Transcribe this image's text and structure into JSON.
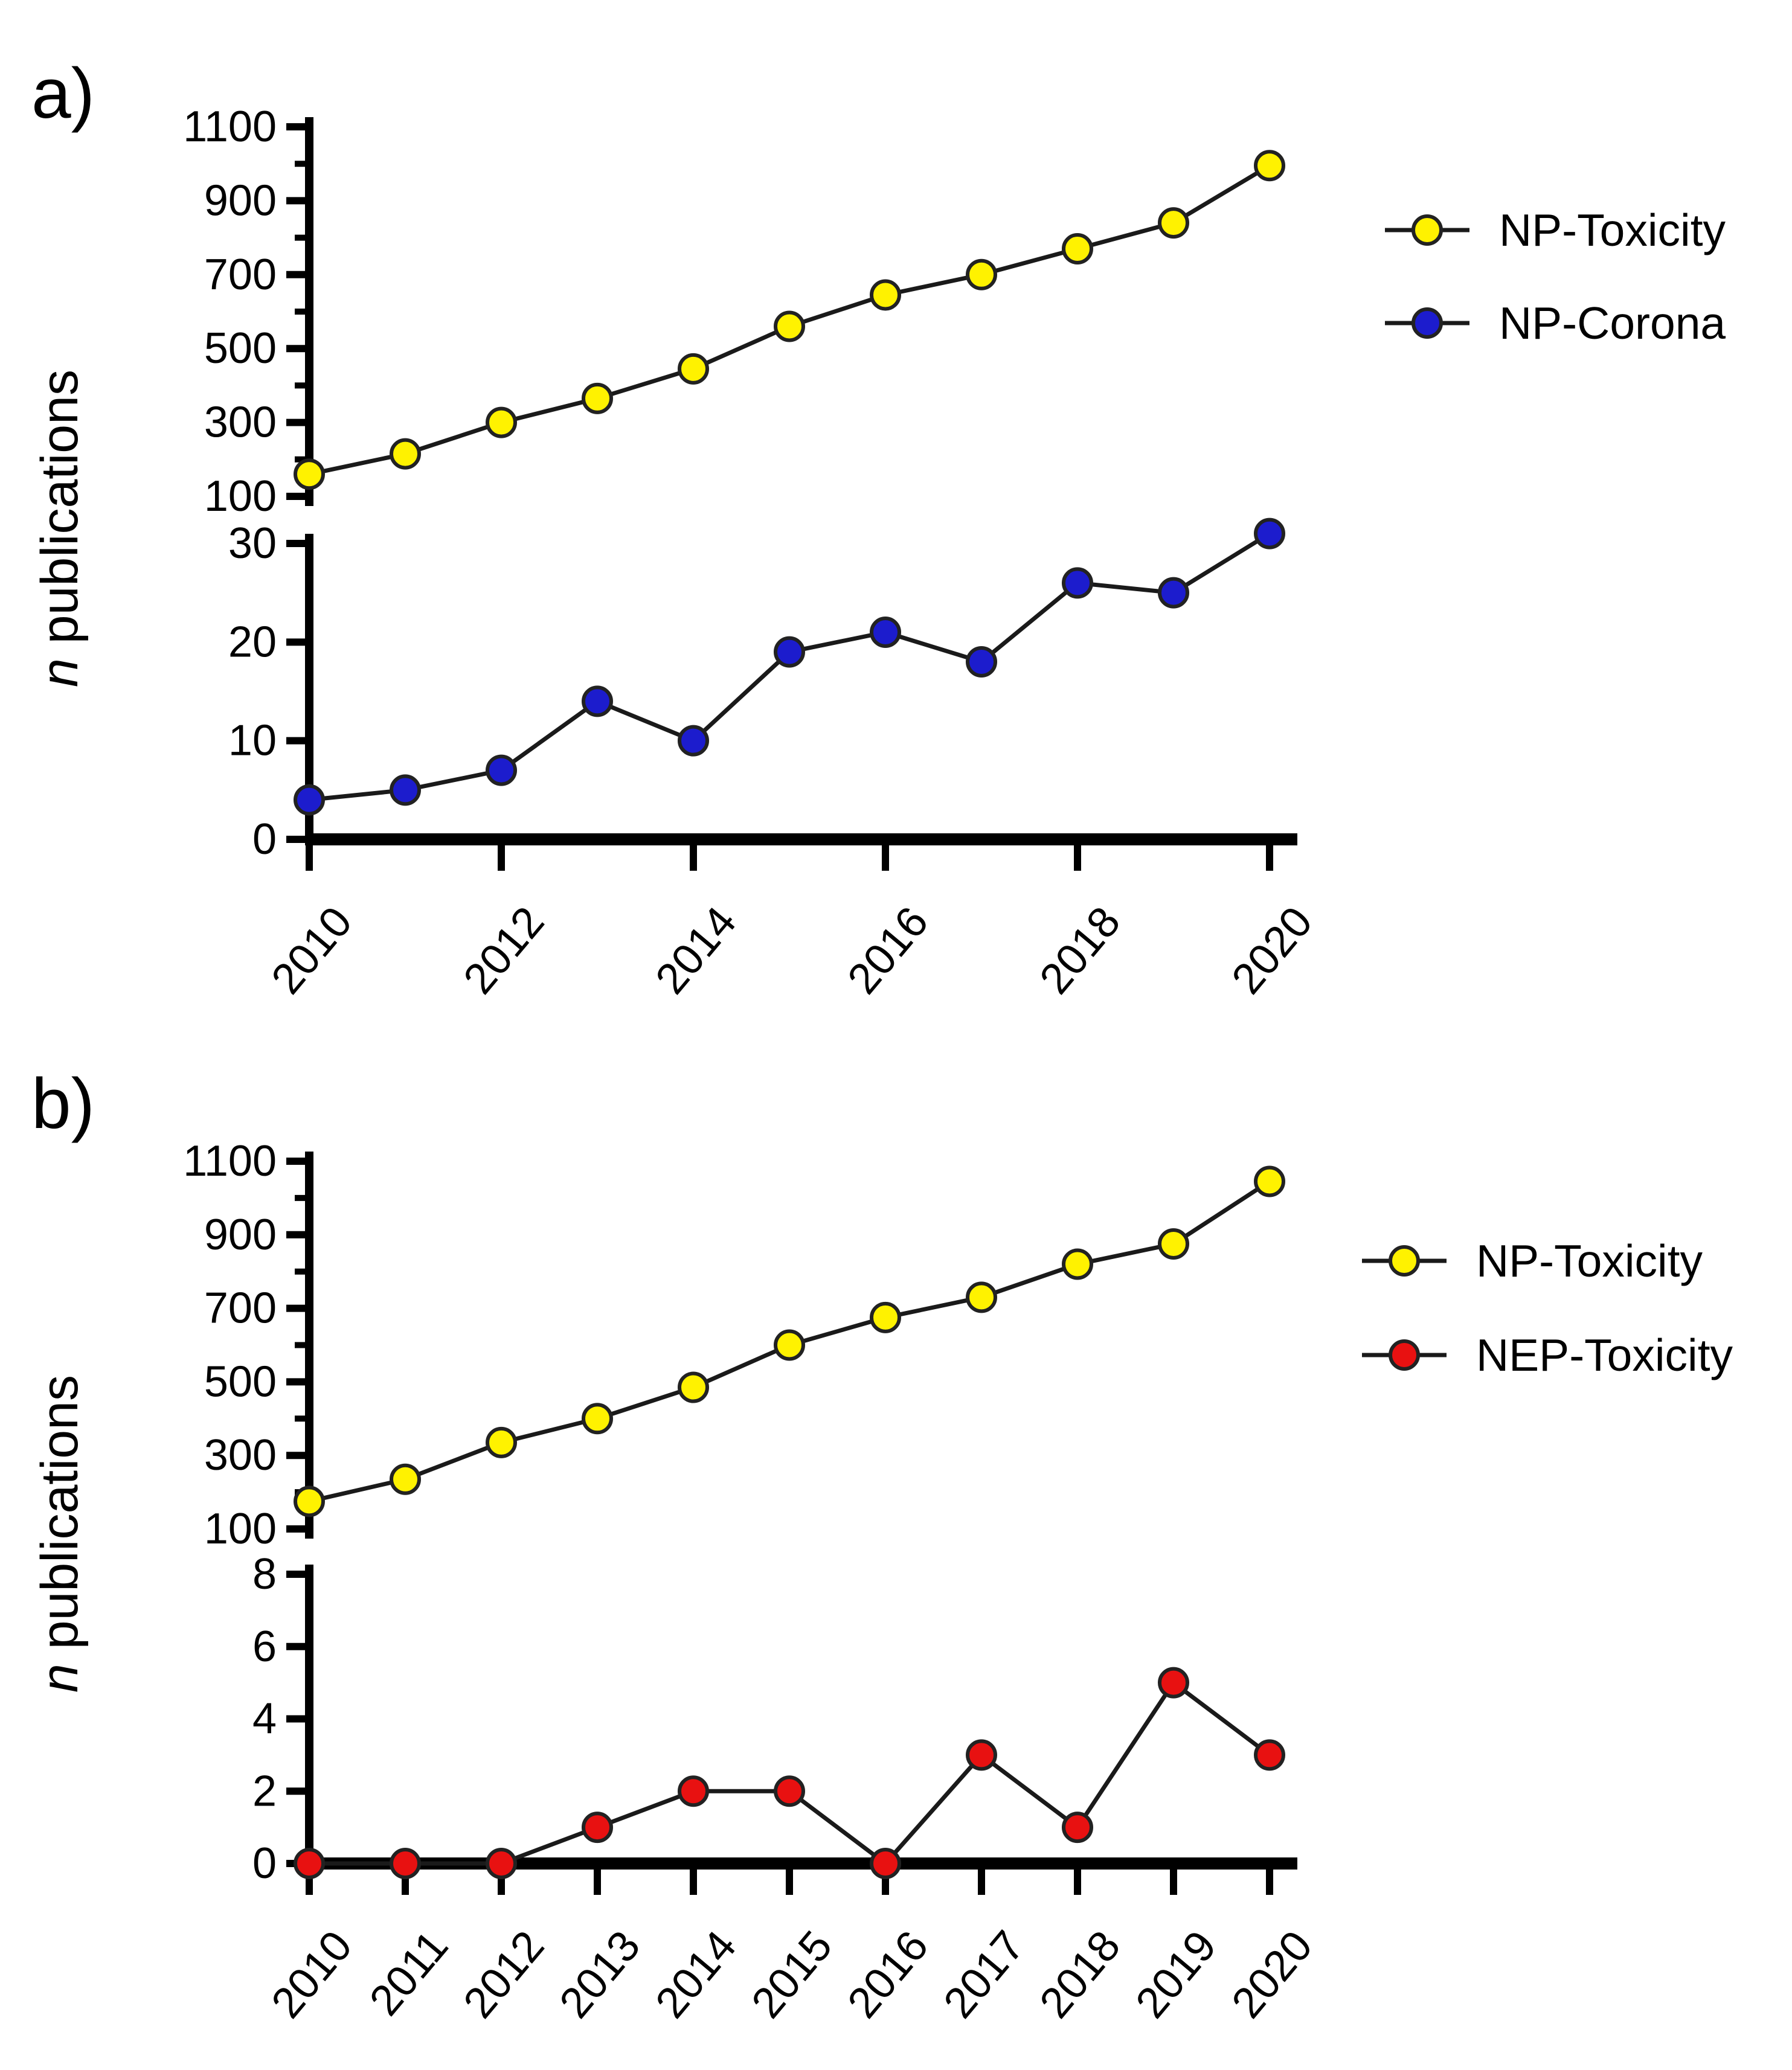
{
  "figure": {
    "background": "#ffffff",
    "axis_color": "#000000",
    "line_color": "#1a1a1a"
  },
  "chart_data": [
    {
      "panel": "a",
      "panel_label": "a)",
      "type": "line",
      "ylabel": "n publications",
      "ylabel_italic_part": "n",
      "ylabel_regular_part": " publications",
      "x": [
        2010,
        2011,
        2012,
        2013,
        2014,
        2015,
        2016,
        2017,
        2018,
        2019,
        2020
      ],
      "x_tick_years": [
        2010,
        2012,
        2014,
        2016,
        2018,
        2020
      ],
      "x_tick_labels": [
        "2010",
        "2012",
        "2014",
        "2016",
        "2018",
        "2020"
      ],
      "axis_break": true,
      "top_segment": {
        "ylim": [
          100,
          1100
        ],
        "yticks": [
          100,
          300,
          500,
          700,
          900,
          1100
        ],
        "ytick_labels": [
          "100",
          "300",
          "500",
          "700",
          "900",
          "1100"
        ],
        "minor_yticks": [
          200,
          400,
          600,
          800,
          1000
        ]
      },
      "bottom_segment": {
        "ylim": [
          0,
          30
        ],
        "yticks": [
          0,
          10,
          20,
          30
        ],
        "ytick_labels": [
          "0",
          "10",
          "20",
          "30"
        ],
        "minor_yticks": []
      },
      "series": [
        {
          "name": "NP-Toxicity",
          "segment": "top",
          "color": "#fff200",
          "marker": "circle",
          "values": [
            160,
            215,
            300,
            365,
            445,
            560,
            645,
            700,
            770,
            840,
            995
          ]
        },
        {
          "name": "NP-Corona",
          "segment": "bottom",
          "color": "#1c1ccd",
          "marker": "circle",
          "values": [
            4,
            5,
            7,
            14,
            10,
            19,
            21,
            18,
            26,
            25,
            31
          ]
        }
      ],
      "legend": {
        "position": "right",
        "entries": [
          {
            "label": "NP-Toxicity",
            "color": "#fff200"
          },
          {
            "label": "NP-Corona",
            "color": "#1c1ccd"
          }
        ]
      }
    },
    {
      "panel": "b",
      "panel_label": "b)",
      "type": "line",
      "ylabel": "n publications",
      "ylabel_italic_part": "n",
      "ylabel_regular_part": " publications",
      "x": [
        2010,
        2011,
        2012,
        2013,
        2014,
        2015,
        2016,
        2017,
        2018,
        2019,
        2020
      ],
      "x_tick_years": [
        2010,
        2011,
        2012,
        2013,
        2014,
        2015,
        2016,
        2017,
        2018,
        2019,
        2020
      ],
      "x_tick_labels": [
        "2010",
        "2011",
        "2012",
        "2013",
        "2014",
        "2015",
        "2016",
        "2017",
        "2018",
        "2019",
        "2020"
      ],
      "axis_break": true,
      "top_segment": {
        "ylim": [
          100,
          1100
        ],
        "yticks": [
          100,
          300,
          500,
          700,
          900,
          1100
        ],
        "ytick_labels": [
          "100",
          "300",
          "500",
          "700",
          "900",
          "1100"
        ],
        "minor_yticks": [
          200,
          400,
          600,
          800,
          1000
        ]
      },
      "bottom_segment": {
        "ylim": [
          0,
          8
        ],
        "yticks": [
          0,
          2,
          4,
          6,
          8
        ],
        "ytick_labels": [
          "0",
          "2",
          "4",
          "6",
          "8"
        ],
        "minor_yticks": []
      },
      "series": [
        {
          "name": "NP-Toxicity",
          "segment": "top",
          "color": "#fff200",
          "marker": "circle",
          "values": [
            175,
            235,
            335,
            400,
            485,
            600,
            675,
            730,
            820,
            875,
            1045
          ]
        },
        {
          "name": "NEP-Toxicity",
          "segment": "bottom",
          "color": "#e81111",
          "marker": "circle",
          "values": [
            0,
            0,
            0,
            1,
            2,
            2,
            0,
            3,
            1,
            5,
            3
          ]
        }
      ],
      "legend": {
        "position": "right",
        "entries": [
          {
            "label": "NP-Toxicity",
            "color": "#fff200"
          },
          {
            "label": "NEP-Toxicity",
            "color": "#e81111"
          }
        ]
      }
    }
  ]
}
